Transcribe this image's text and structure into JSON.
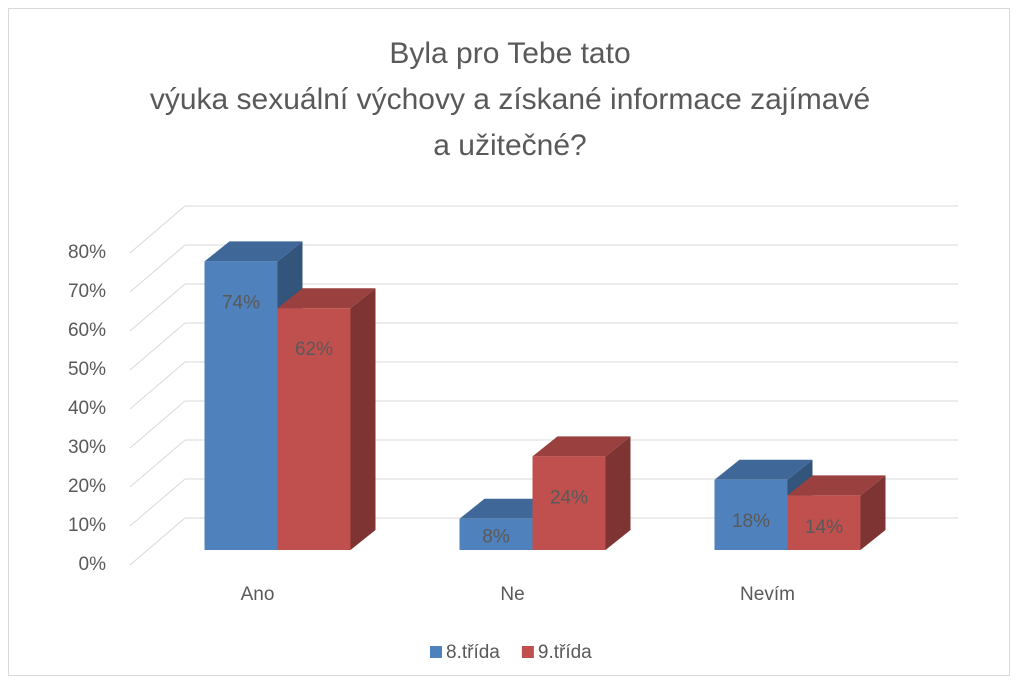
{
  "chart_data": {
    "type": "bar3d",
    "title": [
      "Byla pro Tebe tato",
      "výuka sexuální výchovy a získané informace zajímavé",
      "a užitečné?"
    ],
    "categories": [
      "Ano",
      "Ne",
      "Nevím"
    ],
    "series": [
      {
        "name": "8.třída",
        "color": "#4f81bd",
        "values": [
          74,
          8,
          18
        ],
        "value_labels": [
          "74%",
          "8%",
          "18%"
        ]
      },
      {
        "name": "9.třída",
        "color": "#c0504d",
        "values": [
          62,
          24,
          14
        ],
        "value_labels": [
          "62%",
          "24%",
          "14%"
        ]
      }
    ],
    "ylim": [
      0,
      80
    ],
    "yticks": [
      {
        "value": 0,
        "label": "0%"
      },
      {
        "value": 10,
        "label": "10%"
      },
      {
        "value": 20,
        "label": "20%"
      },
      {
        "value": 30,
        "label": "30%"
      },
      {
        "value": 40,
        "label": "40%"
      },
      {
        "value": 50,
        "label": "50%"
      },
      {
        "value": 60,
        "label": "60%"
      },
      {
        "value": 70,
        "label": "70%"
      },
      {
        "value": 80,
        "label": "80%"
      }
    ],
    "grid": true,
    "legend": "bottom"
  }
}
